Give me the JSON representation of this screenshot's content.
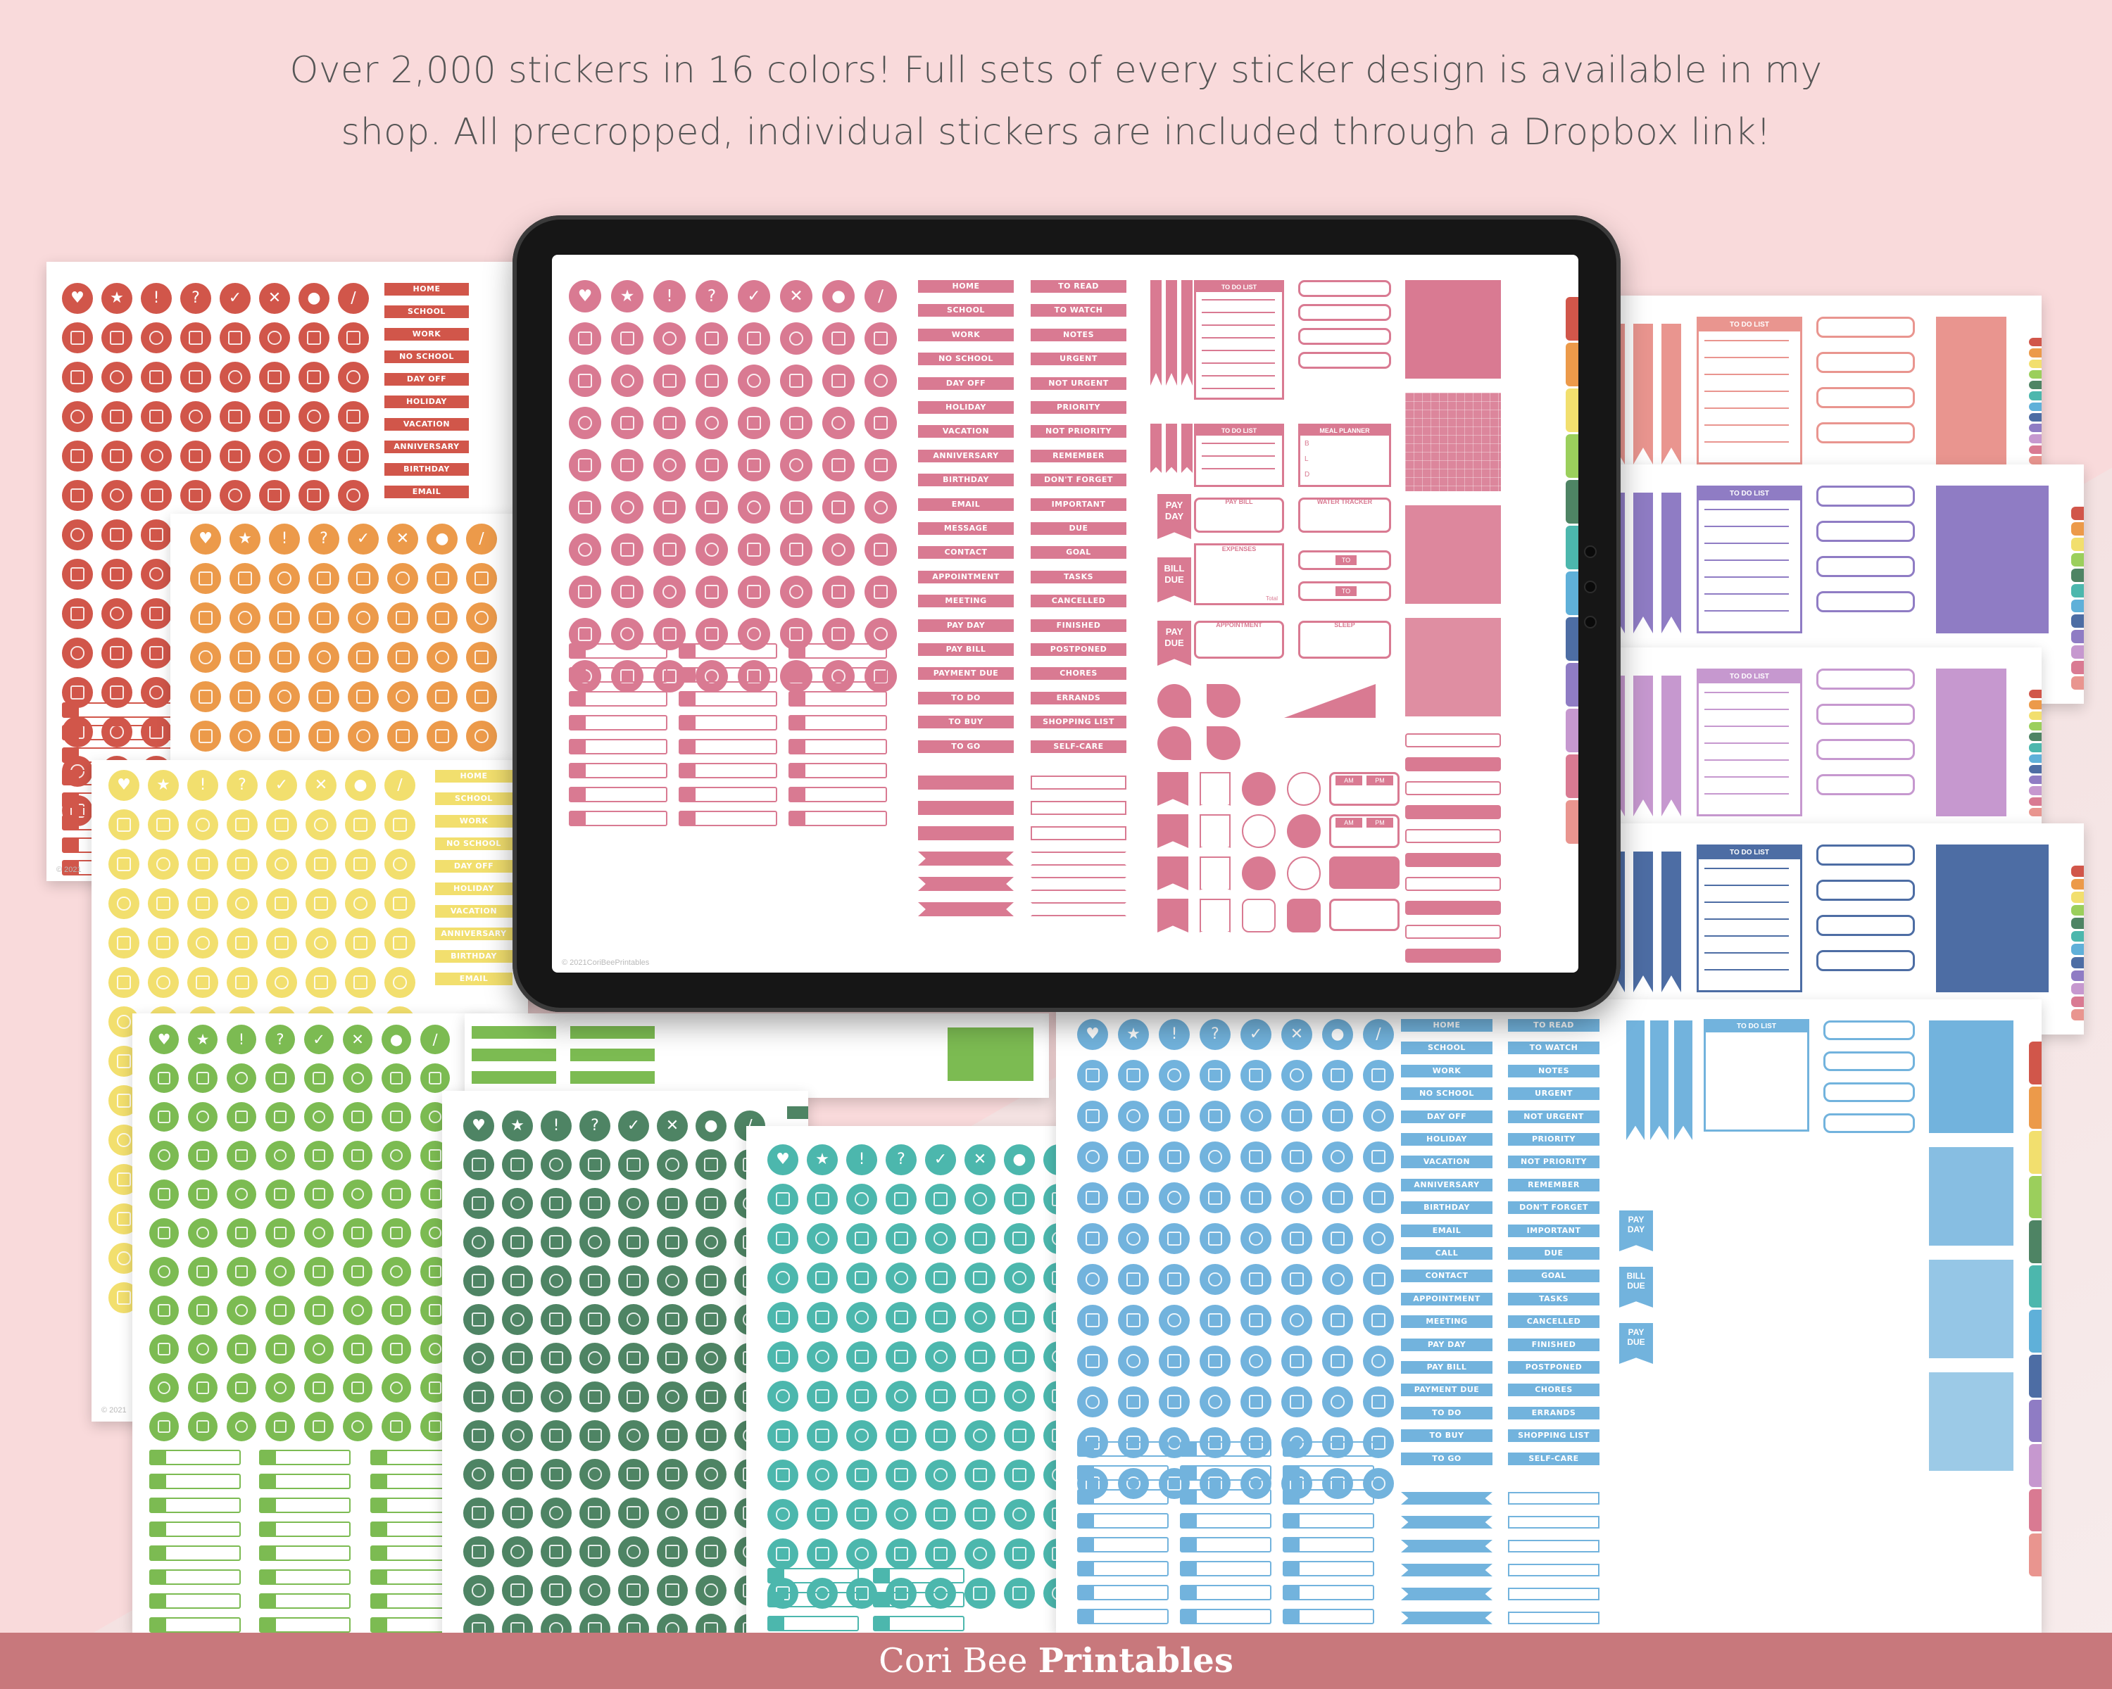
{
  "headline": {
    "line1": "Over 2,000 stickers in 16 colors! Full sets of every sticker design is available in my",
    "line2": "shop. All precropped, individual stickers are included through a Dropbox link!"
  },
  "footer": {
    "brand_light": "Cori Bee",
    "brand_bold": "Printables"
  },
  "screen_copyright": "© 2021CoriBeePrintables",
  "sheet_copyright": "© 2021",
  "labels_col1": [
    "HOME",
    "SCHOOL",
    "WORK",
    "NO SCHOOL",
    "DAY OFF",
    "HOLIDAY",
    "VACATION",
    "ANNIVERSARY",
    "BIRTHDAY",
    "EMAIL",
    "MESSAGE",
    "CONTACT",
    "APPOINTMENT",
    "MEETING",
    "PAY DAY",
    "PAY BILL",
    "PAYMENT DUE",
    "TO DO",
    "TO BUY",
    "TO GO"
  ],
  "labels_col2": [
    "TO READ",
    "TO WATCH",
    "NOTES",
    "URGENT",
    "NOT URGENT",
    "PRIORITY",
    "NOT PRIORITY",
    "REMEMBER",
    "DON'T FORGET",
    "IMPORTANT",
    "DUE",
    "GOAL",
    "TASKS",
    "CANCELLED",
    "FINISHED",
    "POSTPONED",
    "CHORES",
    "ERRANDS",
    "SHOPPING LIST",
    "SELF-CARE"
  ],
  "blue_labels_col1": [
    "HOME",
    "SCHOOL",
    "WORK",
    "NO SCHOOL",
    "DAY OFF",
    "HOLIDAY",
    "VACATION",
    "ANNIVERSARY",
    "BIRTHDAY",
    "EMAIL",
    "CALL",
    "CONTACT",
    "APPOINTMENT",
    "MEETING",
    "PAY DAY",
    "PAY BILL",
    "PAYMENT DUE",
    "TO DO",
    "TO BUY",
    "TO GO"
  ],
  "widgets": {
    "to_do_list": "TO DO LIST",
    "meal_planner": "MEAL PLANNER",
    "pay_bill": "PAY BILL",
    "water_tracker": "WATER TRACKER",
    "expenses": "EXPENSES",
    "total": "Total",
    "appointment": "APPOINTMENT",
    "sleep": "SLEEP",
    "to": "TO",
    "pay_day": "PAY DAY",
    "bill_due": "BILL DUE",
    "pay_due": "PAY DUE",
    "am": "AM",
    "pm": "PM",
    "meal_b": "B",
    "meal_l": "L",
    "meal_d": "D"
  },
  "palette": {
    "red": "#d1564a",
    "orange": "#ec9a4a",
    "yellow": "#f2df6e",
    "green": "#7cbb52",
    "dark_green": "#4e8464",
    "teal": "#4cb7ad",
    "blue": "#72b3dd",
    "pink": "#d97a92",
    "salmon": "#e9958f",
    "purple": "#8f7cc4",
    "lilac": "#c698cf",
    "navy": "#4d6da4"
  },
  "tab_colors": [
    "#d1564a",
    "#ec9a4a",
    "#f2df6e",
    "#9bcf5c",
    "#4e8464",
    "#4cb7ad",
    "#5fb0d9",
    "#4d6da4",
    "#8f7cc4",
    "#c698cf",
    "#d97a92",
    "#e9958f"
  ],
  "icons": [
    "heart-icon",
    "star-icon",
    "exclamation-icon",
    "question-icon",
    "check-icon",
    "x-icon",
    "pin-icon",
    "paperclip-icon"
  ]
}
